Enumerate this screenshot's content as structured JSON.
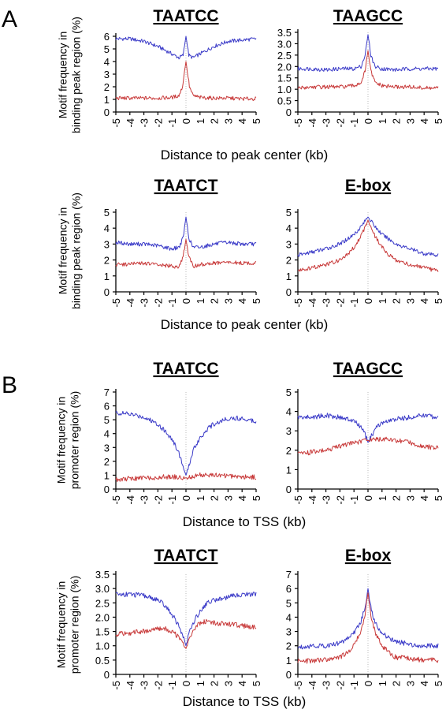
{
  "panels": [
    {
      "letter": "A",
      "ylabel": "Motif frequency in binding peak region (%)",
      "xlabel": "Distance to peak center (kb)",
      "ylabel_lines": [
        "Motif frequency in",
        "binding peak region (%)"
      ]
    },
    {
      "letter": "B",
      "ylabel": "Motif frequency in promoter region (%)",
      "xlabel": "Distance to TSS (kb)",
      "ylabel_lines": [
        "Motif frequency in",
        "promoter region (%)"
      ]
    }
  ],
  "colors": {
    "blue": "#3b3bc8",
    "red": "#c83a3a",
    "center_line": "#bbbbbb"
  },
  "chart_data": [
    {
      "type": "line",
      "panel": "A",
      "title": "TAATCC",
      "xlabel": "Distance to peak center (kb)",
      "ylabel": "Motif frequency in binding peak region (%)",
      "xlim": [
        -5,
        5
      ],
      "ylim": [
        0,
        6
      ],
      "xticks": [
        "-5",
        "-4",
        "-3",
        "-2",
        "-1",
        "0",
        "1",
        "2",
        "3",
        "4",
        "5"
      ],
      "yticks": [
        "0",
        "1",
        "2",
        "3",
        "4",
        "5",
        "6"
      ],
      "series": [
        {
          "color": "blue",
          "x": [
            -5,
            -4,
            -3,
            -2,
            -1,
            -0.5,
            -0.2,
            0,
            0.2,
            0.5,
            1,
            2,
            3,
            4,
            5
          ],
          "y": [
            5.8,
            5.8,
            5.6,
            5.2,
            4.6,
            4.3,
            4.5,
            6.0,
            4.5,
            4.3,
            4.6,
            5.2,
            5.6,
            5.7,
            5.8
          ]
        },
        {
          "color": "red",
          "x": [
            -5,
            -4,
            -3,
            -2,
            -1,
            -0.5,
            -0.25,
            0,
            0.25,
            0.5,
            1,
            2,
            3,
            4,
            5
          ],
          "y": [
            1.1,
            1.1,
            1.1,
            1.1,
            1.15,
            1.3,
            2.0,
            4.0,
            2.0,
            1.3,
            1.15,
            1.1,
            1.1,
            1.05,
            1.05
          ]
        }
      ]
    },
    {
      "type": "line",
      "panel": "A",
      "title": "TAAGCC",
      "xlabel": "Distance to peak center (kb)",
      "ylabel": "",
      "xlim": [
        -5,
        5
      ],
      "ylim": [
        0,
        3.5
      ],
      "xticks": [
        "-5",
        "-4",
        "-3",
        "-2",
        "-1",
        "0",
        "1",
        "2",
        "3",
        "4",
        "5"
      ],
      "yticks": [
        "0",
        "0.5",
        "1.0",
        "1.5",
        "2.0",
        "2.5",
        "3.0",
        "3.5"
      ],
      "series": [
        {
          "color": "blue",
          "x": [
            -5,
            -4,
            -3,
            -2,
            -1,
            -0.5,
            -0.2,
            0,
            0.2,
            0.5,
            1,
            2,
            3,
            4,
            5
          ],
          "y": [
            1.9,
            1.9,
            1.85,
            1.9,
            1.9,
            2.0,
            2.5,
            3.4,
            2.5,
            2.0,
            1.9,
            1.85,
            1.9,
            1.9,
            1.9
          ]
        },
        {
          "color": "red",
          "x": [
            -5,
            -4,
            -3,
            -2,
            -1,
            -0.5,
            -0.2,
            0,
            0.2,
            0.5,
            1,
            2,
            3,
            4,
            5
          ],
          "y": [
            1.05,
            1.1,
            1.1,
            1.1,
            1.15,
            1.3,
            1.8,
            2.7,
            1.8,
            1.3,
            1.15,
            1.1,
            1.1,
            1.05,
            1.05
          ]
        }
      ]
    },
    {
      "type": "line",
      "panel": "A",
      "title": "TAATCT",
      "xlabel": "Distance to peak center (kb)",
      "ylabel": "Motif frequency in binding peak region (%)",
      "xlim": [
        -5,
        5
      ],
      "ylim": [
        0,
        5
      ],
      "xticks": [
        "-5",
        "-4",
        "-3",
        "-2",
        "-1",
        "0",
        "1",
        "2",
        "3",
        "4",
        "5"
      ],
      "yticks": [
        "0",
        "1",
        "2",
        "3",
        "4",
        "5"
      ],
      "series": [
        {
          "color": "blue",
          "x": [
            -5,
            -4,
            -3,
            -2,
            -1,
            -0.5,
            -0.2,
            0,
            0.2,
            0.5,
            1,
            2,
            3,
            4,
            5
          ],
          "y": [
            3.1,
            3.0,
            3.0,
            2.9,
            2.7,
            2.8,
            3.4,
            4.7,
            3.4,
            2.8,
            2.8,
            3.0,
            3.1,
            3.0,
            3.0
          ]
        },
        {
          "color": "red",
          "x": [
            -5,
            -4,
            -3,
            -2,
            -1,
            -0.5,
            -0.2,
            0,
            0.2,
            0.5,
            1,
            2,
            3,
            4,
            5
          ],
          "y": [
            1.7,
            1.75,
            1.8,
            1.7,
            1.6,
            1.6,
            2.2,
            3.3,
            2.2,
            1.6,
            1.7,
            1.8,
            1.85,
            1.8,
            1.8
          ]
        }
      ]
    },
    {
      "type": "line",
      "panel": "A",
      "title": "E-box",
      "xlabel": "Distance to peak center (kb)",
      "ylabel": "",
      "xlim": [
        -5,
        5
      ],
      "ylim": [
        0,
        5
      ],
      "xticks": [
        "-5",
        "-4",
        "-3",
        "-2",
        "-1",
        "0",
        "1",
        "2",
        "3",
        "4",
        "5"
      ],
      "yticks": [
        "0",
        "1",
        "2",
        "3",
        "4",
        "5"
      ],
      "series": [
        {
          "color": "blue",
          "x": [
            -5,
            -4,
            -3,
            -2,
            -1.5,
            -1,
            -0.5,
            0,
            0.5,
            1,
            1.5,
            2,
            3,
            4,
            5
          ],
          "y": [
            2.3,
            2.5,
            2.7,
            3.0,
            3.3,
            3.6,
            4.1,
            4.7,
            4.1,
            3.6,
            3.3,
            3.0,
            2.7,
            2.4,
            2.3
          ]
        },
        {
          "color": "red",
          "x": [
            -5,
            -4,
            -3,
            -2,
            -1.5,
            -1,
            -0.5,
            0,
            0.5,
            1,
            1.5,
            2,
            3,
            4,
            5
          ],
          "y": [
            1.3,
            1.5,
            1.7,
            2.0,
            2.3,
            2.8,
            3.5,
            4.5,
            3.5,
            2.8,
            2.3,
            2.0,
            1.7,
            1.5,
            1.3
          ]
        }
      ]
    },
    {
      "type": "line",
      "panel": "B",
      "title": "TAATCC",
      "xlabel": "Distance to TSS (kb)",
      "ylabel": "Motif frequency in promoter region (%)",
      "xlim": [
        -5,
        5
      ],
      "ylim": [
        0,
        7
      ],
      "xticks": [
        "-5",
        "-4",
        "-3",
        "-2",
        "-1",
        "0",
        "1",
        "2",
        "3",
        "4",
        "5"
      ],
      "yticks": [
        "0",
        "1",
        "2",
        "3",
        "4",
        "5",
        "6",
        "7"
      ],
      "series": [
        {
          "color": "blue",
          "x": [
            -5,
            -4,
            -3,
            -2,
            -1.5,
            -1,
            -0.5,
            -0.2,
            0,
            0.2,
            0.5,
            1,
            1.5,
            2,
            3,
            4,
            5
          ],
          "y": [
            5.5,
            5.4,
            5.2,
            4.7,
            4.2,
            3.6,
            2.6,
            1.6,
            1.0,
            1.6,
            2.8,
            3.7,
            4.3,
            4.7,
            5.1,
            5.1,
            4.9
          ]
        },
        {
          "color": "red",
          "x": [
            -5,
            -4,
            -3,
            -2,
            -1,
            0,
            1,
            2,
            3,
            4,
            5
          ],
          "y": [
            0.7,
            0.75,
            0.8,
            0.85,
            0.9,
            0.8,
            1.0,
            1.0,
            0.95,
            0.9,
            0.85
          ]
        }
      ]
    },
    {
      "type": "line",
      "panel": "B",
      "title": "TAAGCC",
      "xlabel": "Distance to TSS (kb)",
      "ylabel": "",
      "xlim": [
        -5,
        5
      ],
      "ylim": [
        0,
        5
      ],
      "xticks": [
        "-5",
        "-4",
        "-3",
        "-2",
        "-1",
        "0",
        "1",
        "2",
        "3",
        "4",
        "5"
      ],
      "yticks": [
        "0",
        "1",
        "2",
        "3",
        "4",
        "5"
      ],
      "series": [
        {
          "color": "blue",
          "x": [
            -5,
            -4,
            -3,
            -2,
            -1,
            -0.5,
            -0.2,
            0,
            0.3,
            0.6,
            1,
            2,
            3,
            4,
            5
          ],
          "y": [
            3.7,
            3.7,
            3.8,
            3.7,
            3.5,
            3.2,
            2.8,
            2.4,
            2.8,
            3.2,
            3.4,
            3.6,
            3.7,
            3.8,
            3.7
          ]
        },
        {
          "color": "red",
          "x": [
            -5,
            -4,
            -3,
            -2,
            -1,
            0,
            1,
            2,
            3,
            4,
            5
          ],
          "y": [
            1.8,
            1.9,
            2.0,
            2.2,
            2.4,
            2.5,
            2.6,
            2.5,
            2.4,
            2.2,
            2.1
          ]
        }
      ]
    },
    {
      "type": "line",
      "panel": "B",
      "title": "TAATCT",
      "xlabel": "Distance to TSS (kb)",
      "ylabel": "Motif frequency in promoter region (%)",
      "xlim": [
        -5,
        5
      ],
      "ylim": [
        0,
        3.5
      ],
      "xticks": [
        "-5",
        "-4",
        "-3",
        "-2",
        "-1",
        "0",
        "1",
        "2",
        "3",
        "4",
        "5"
      ],
      "yticks": [
        "0",
        "0.5",
        "1.0",
        "1.5",
        "2.0",
        "2.5",
        "3.0",
        "3.5"
      ],
      "series": [
        {
          "color": "blue",
          "x": [
            -5,
            -4,
            -3,
            -2,
            -1.5,
            -1,
            -0.5,
            -0.2,
            0,
            0.2,
            0.5,
            1,
            1.5,
            2,
            3,
            4,
            5
          ],
          "y": [
            2.8,
            2.8,
            2.75,
            2.6,
            2.4,
            2.1,
            1.7,
            1.3,
            1.0,
            1.4,
            1.8,
            2.2,
            2.5,
            2.6,
            2.7,
            2.8,
            2.8
          ]
        },
        {
          "color": "red",
          "x": [
            -5,
            -4,
            -3,
            -2,
            -1.5,
            -1,
            -0.5,
            -0.2,
            0,
            0.2,
            0.5,
            1,
            1.5,
            2,
            3,
            4,
            5
          ],
          "y": [
            1.4,
            1.45,
            1.5,
            1.6,
            1.6,
            1.5,
            1.3,
            1.1,
            0.9,
            1.2,
            1.5,
            1.8,
            1.85,
            1.8,
            1.75,
            1.7,
            1.65
          ]
        }
      ]
    },
    {
      "type": "line",
      "panel": "B",
      "title": "E-box",
      "xlabel": "Distance to TSS (kb)",
      "ylabel": "",
      "xlim": [
        -5,
        5
      ],
      "ylim": [
        0,
        7
      ],
      "xticks": [
        "-5",
        "-4",
        "-3",
        "-2",
        "-1",
        "0",
        "1",
        "2",
        "3",
        "4",
        "5"
      ],
      "yticks": [
        "0",
        "1",
        "2",
        "3",
        "4",
        "5",
        "6",
        "7"
      ],
      "series": [
        {
          "color": "blue",
          "x": [
            -5,
            -4,
            -3,
            -2,
            -1.5,
            -1,
            -0.5,
            -0.2,
            0,
            0.2,
            0.5,
            1,
            1.5,
            2,
            3,
            4,
            5
          ],
          "y": [
            1.9,
            2.0,
            2.0,
            2.2,
            2.5,
            2.9,
            3.7,
            4.7,
            6.0,
            4.7,
            3.6,
            2.9,
            2.5,
            2.3,
            2.1,
            2.0,
            2.0
          ]
        },
        {
          "color": "red",
          "x": [
            -5,
            -4,
            -3,
            -2,
            -1.5,
            -1,
            -0.5,
            -0.2,
            0,
            0.2,
            0.5,
            1,
            1.5,
            2,
            3,
            4,
            5
          ],
          "y": [
            0.9,
            0.95,
            1.0,
            1.2,
            1.5,
            2.0,
            3.0,
            4.2,
            5.7,
            4.2,
            3.0,
            2.0,
            1.5,
            1.2,
            1.1,
            1.0,
            1.0
          ]
        }
      ]
    }
  ]
}
